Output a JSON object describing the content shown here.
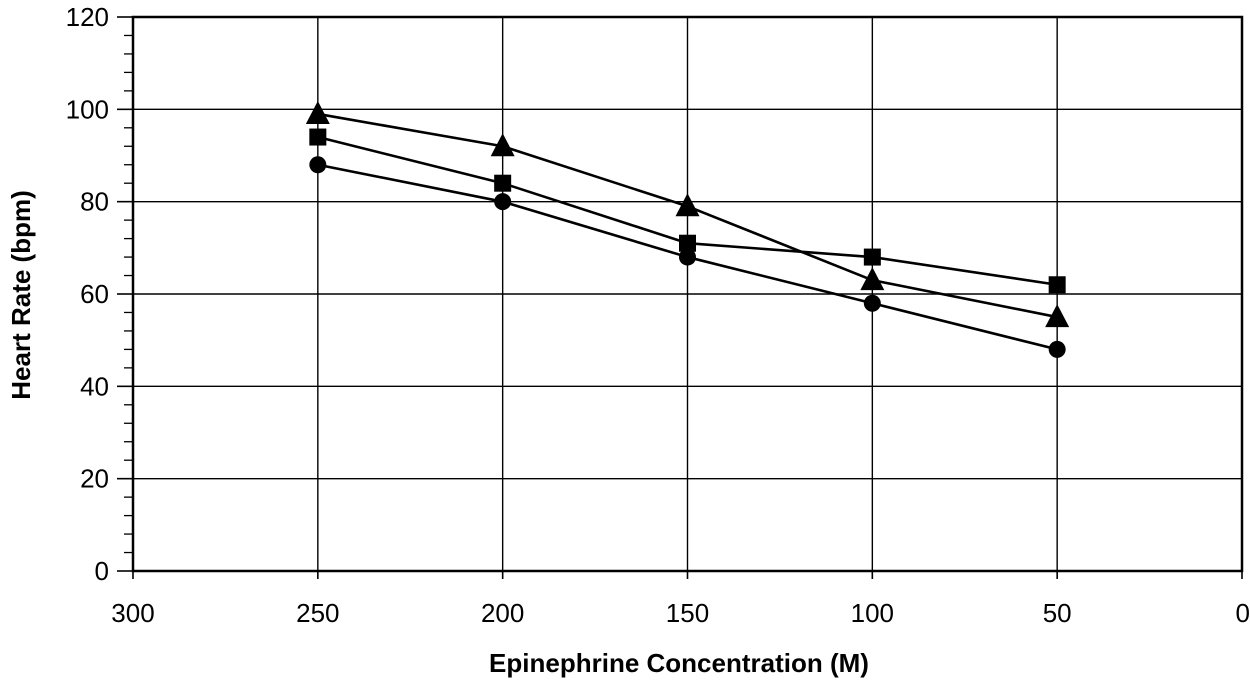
{
  "chart_data": {
    "type": "line",
    "xlabel": "Epinephrine Concentration (M)",
    "ylabel": "Heart Rate (bpm)",
    "xlim": [
      300,
      0
    ],
    "ylim": [
      0,
      120
    ],
    "x_reversed": true,
    "x_ticks": [
      300,
      250,
      200,
      150,
      100,
      50,
      0
    ],
    "y_ticks": [
      0,
      20,
      40,
      60,
      80,
      100,
      120
    ],
    "y_minor_step": 4,
    "grid": true,
    "legend": "none",
    "line_color": "#000000",
    "series": [
      {
        "marker": "circle",
        "x": [
          250,
          200,
          150,
          100,
          50
        ],
        "values": [
          88,
          80,
          68,
          58,
          48
        ]
      },
      {
        "marker": "square",
        "x": [
          250,
          200,
          150,
          100,
          50
        ],
        "values": [
          94,
          84,
          71,
          68,
          62
        ]
      },
      {
        "marker": "triangle",
        "x": [
          250,
          200,
          150,
          100,
          50
        ],
        "values": [
          99,
          92,
          79,
          63,
          55
        ]
      }
    ]
  }
}
